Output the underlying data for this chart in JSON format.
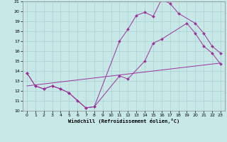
{
  "xlabel": "Windchill (Refroidissement éolien,°C)",
  "background_color": "#c8e8e8",
  "line_color": "#993399",
  "grid_color": "#a8d0d0",
  "xlim": [
    -0.5,
    23.5
  ],
  "ylim": [
    10,
    21
  ],
  "yticks": [
    10,
    11,
    12,
    13,
    14,
    15,
    16,
    17,
    18,
    19,
    20,
    21
  ],
  "xticks": [
    0,
    1,
    2,
    3,
    4,
    5,
    6,
    7,
    8,
    9,
    10,
    11,
    12,
    13,
    14,
    15,
    16,
    17,
    18,
    19,
    20,
    21,
    22,
    23
  ],
  "line1_x": [
    0,
    1,
    2,
    3,
    4,
    5,
    6,
    7,
    8,
    11,
    12,
    13,
    14,
    15,
    16,
    17,
    18,
    20,
    21,
    22,
    23
  ],
  "line1_y": [
    13.8,
    12.5,
    12.2,
    12.5,
    12.2,
    11.8,
    11.0,
    10.3,
    10.4,
    17.0,
    18.2,
    19.6,
    19.9,
    19.5,
    21.2,
    20.8,
    19.8,
    18.8,
    17.8,
    16.5,
    15.8
  ],
  "line2_x": [
    0,
    1,
    2,
    3,
    4,
    5,
    7,
    8,
    11,
    12,
    14,
    15,
    16,
    19,
    20,
    21,
    22,
    23
  ],
  "line2_y": [
    13.8,
    12.5,
    12.2,
    12.5,
    12.2,
    11.8,
    10.3,
    10.4,
    13.5,
    13.2,
    15.0,
    16.8,
    17.2,
    18.8,
    17.8,
    16.5,
    15.8,
    14.7
  ],
  "line3_x": [
    0,
    23
  ],
  "line3_y": [
    12.5,
    14.8
  ]
}
